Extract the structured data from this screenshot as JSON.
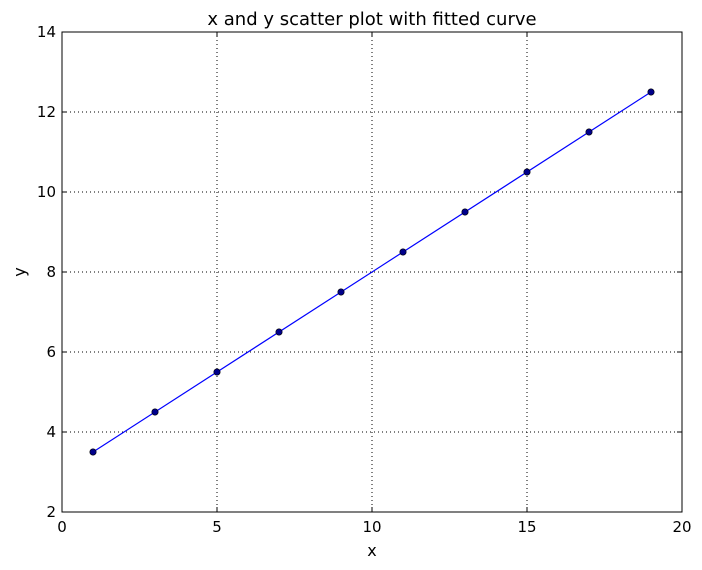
{
  "chart_data": {
    "type": "scatter",
    "title": "x and y scatter plot with fitted curve",
    "xlabel": "x",
    "ylabel": "y",
    "xlim": [
      0,
      20
    ],
    "ylim": [
      2,
      14
    ],
    "xticks": [
      0,
      5,
      10,
      15,
      20
    ],
    "yticks": [
      2,
      4,
      6,
      8,
      10,
      12,
      14
    ],
    "grid": true,
    "colors": {
      "series": "#0000ff",
      "point_fill": "#00008b"
    },
    "points": {
      "x": [
        1,
        3,
        5,
        7,
        9,
        11,
        13,
        15,
        17,
        19
      ],
      "y": [
        3.5,
        4.5,
        5.5,
        6.5,
        7.5,
        8.5,
        9.5,
        10.5,
        11.5,
        12.5
      ]
    },
    "fitted_curve": {
      "x": [
        1,
        19
      ],
      "y": [
        3.5,
        12.5
      ]
    }
  }
}
